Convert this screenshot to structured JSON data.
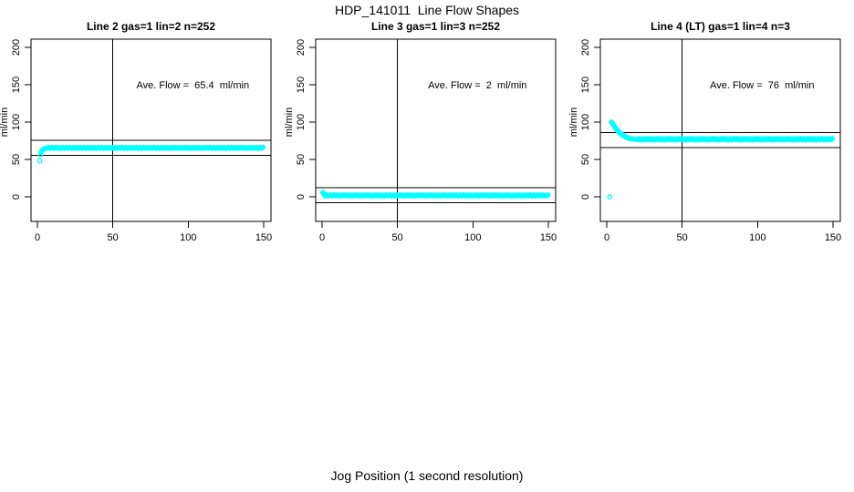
{
  "figure": {
    "title": "HDP_141011  Line Flow Shapes",
    "xlabel": "Jog Position (1 second resolution)",
    "background": "#ffffff",
    "axis_color": "#000000",
    "point_color": "#00FFFF"
  },
  "chart_data": [
    {
      "type": "scatter",
      "title": "Line 2 gas=1 lin=2 n=252",
      "annotation": "Ave. Flow =  65.4  ml/min",
      "ave_flow": 65.4,
      "ylabel": "ml/min",
      "xlabel": "",
      "xlim": [
        0,
        150
      ],
      "ylim": [
        0,
        200
      ],
      "x_ticks": [
        0,
        50,
        100,
        150
      ],
      "y_ticks": [
        0,
        50,
        100,
        150,
        200
      ],
      "vline_x": 50,
      "ref_lines": [
        75.4,
        55.4
      ],
      "grid": false,
      "point_color": "#00FFFF",
      "points": [
        [
          1.5,
          48
        ],
        [
          2,
          56
        ],
        [
          2.5,
          59.5
        ],
        [
          3,
          61.5
        ],
        [
          3.5,
          63
        ],
        [
          4,
          63.8
        ],
        [
          4.5,
          64.4
        ],
        [
          5,
          64.8
        ],
        [
          5.5,
          65.1
        ]
      ],
      "band": {
        "x_from": 6,
        "x_to": 150,
        "step": 0.7,
        "y": 65.5,
        "wobble": 0.7
      }
    },
    {
      "type": "scatter",
      "title": "Line 3 gas=1 lin=3 n=252",
      "annotation": "Ave. Flow =  2  ml/min",
      "ave_flow": 2,
      "ylabel": "ml/min",
      "xlabel": "",
      "xlim": [
        0,
        150
      ],
      "ylim": [
        0,
        200
      ],
      "x_ticks": [
        0,
        50,
        100,
        150
      ],
      "y_ticks": [
        0,
        50,
        100,
        150,
        200
      ],
      "vline_x": 50,
      "ref_lines": [
        12,
        -8
      ],
      "grid": false,
      "point_color": "#00FFFF",
      "points": [
        [
          0.5,
          6
        ],
        [
          1,
          4.5
        ],
        [
          1.5,
          3.2
        ],
        [
          2,
          2.6
        ]
      ],
      "band": {
        "x_from": 2,
        "x_to": 150,
        "step": 0.7,
        "y": 1.8,
        "wobble": 0.7
      }
    },
    {
      "type": "scatter",
      "title": "Line 4 (LT) gas=1 lin=4 n=3",
      "annotation": "Ave. Flow =  76  ml/min",
      "ave_flow": 76,
      "ylabel": "ml/min",
      "xlabel": "",
      "xlim": [
        0,
        150
      ],
      "ylim": [
        0,
        200
      ],
      "x_ticks": [
        0,
        50,
        100,
        150
      ],
      "y_ticks": [
        0,
        50,
        100,
        150,
        200
      ],
      "vline_x": 50,
      "ref_lines": [
        86,
        66
      ],
      "grid": false,
      "point_color": "#00FFFF",
      "points": [
        [
          2,
          0
        ],
        [
          3,
          100
        ],
        [
          3.5,
          99
        ],
        [
          4,
          97.5
        ],
        [
          4.5,
          96
        ],
        [
          5,
          94.5
        ],
        [
          5.5,
          93
        ],
        [
          6,
          91.5
        ],
        [
          6.5,
          90
        ],
        [
          7,
          89
        ],
        [
          7.5,
          88
        ],
        [
          8,
          87
        ],
        [
          8.5,
          86
        ],
        [
          9,
          85
        ],
        [
          9.5,
          84.2
        ],
        [
          10,
          83.5
        ],
        [
          10.5,
          82.8
        ],
        [
          11,
          82.1
        ],
        [
          11.5,
          81.5
        ],
        [
          12,
          80.9
        ],
        [
          12.5,
          80.3
        ],
        [
          13,
          79.8
        ],
        [
          13.5,
          79.3
        ],
        [
          14,
          78.9
        ],
        [
          14.5,
          78.5
        ],
        [
          15,
          78.1
        ],
        [
          16,
          77.7
        ],
        [
          17,
          77.4
        ],
        [
          18,
          77.2
        ],
        [
          19,
          77.1
        ],
        [
          20,
          77
        ]
      ],
      "band": {
        "x_from": 20,
        "x_to": 150,
        "step": 0.7,
        "y": 77,
        "wobble": 1.0
      }
    }
  ]
}
